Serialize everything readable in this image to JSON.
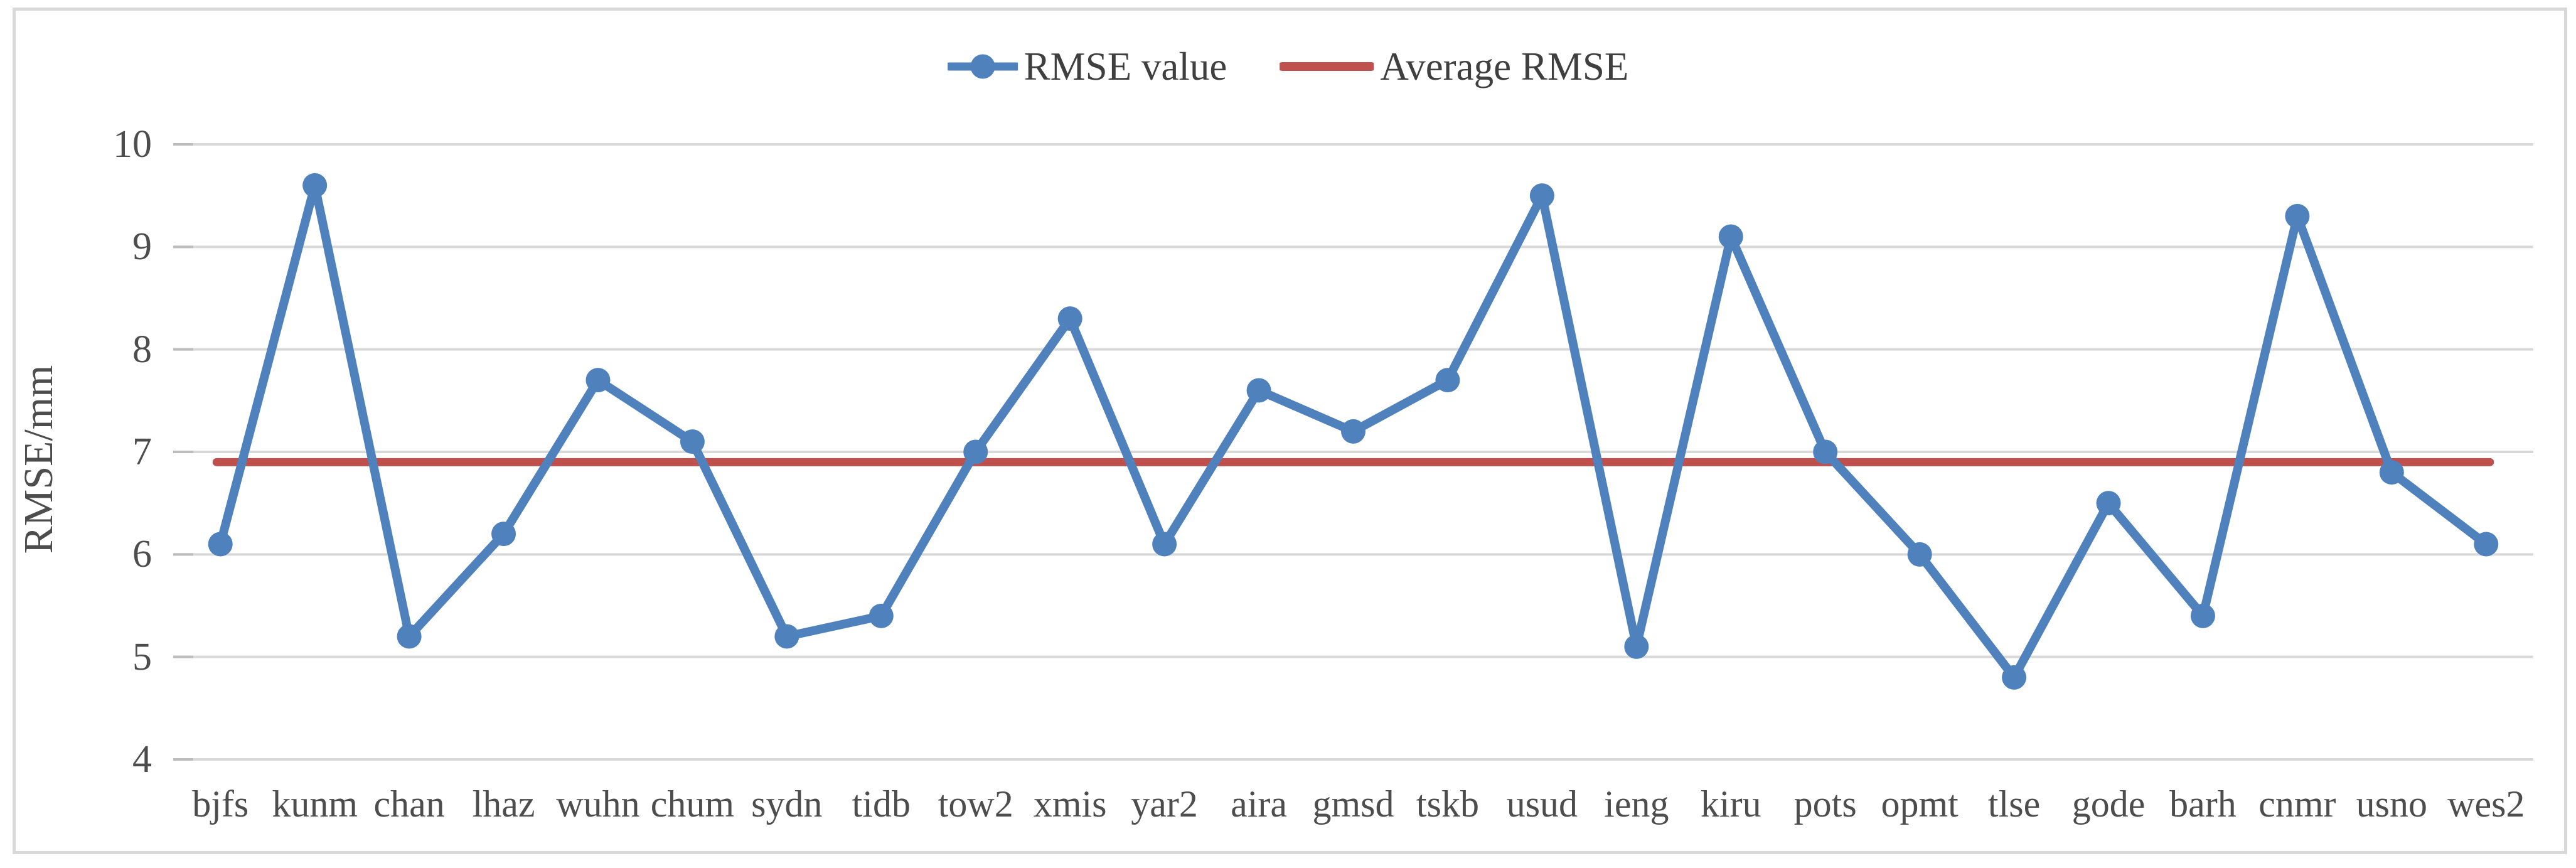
{
  "chart": {
    "legend": {
      "items": [
        {
          "label": "RMSE value",
          "swatch": "line-with-circle-marker"
        },
        {
          "label": "Average RMSE",
          "swatch": "plain-line"
        }
      ]
    },
    "y_axis": {
      "title": "RMSE/mm",
      "tick_labels": [
        "10",
        "9",
        "8",
        "7",
        "6",
        "5",
        "4"
      ],
      "min": 4,
      "max": 10
    }
  },
  "chart_data": {
    "type": "line",
    "title": "",
    "xlabel": "",
    "ylabel": "RMSE/mm",
    "ylim": [
      4,
      10
    ],
    "yticks": [
      4,
      5,
      6,
      7,
      8,
      9,
      10
    ],
    "grid": true,
    "legend_position": "top-center",
    "categories": [
      "bjfs",
      "kunm",
      "chan",
      "lhaz",
      "wuhn",
      "chum",
      "sydn",
      "tidb",
      "tow2",
      "xmis",
      "yar2",
      "aira",
      "gmsd",
      "tskb",
      "usud",
      "ieng",
      "kiru",
      "pots",
      "opmt",
      "tlse",
      "gode",
      "barh",
      "cnmr",
      "usno",
      "wes2"
    ],
    "series": [
      {
        "name": "RMSE value",
        "color": "#4F81BD",
        "marker": "circle",
        "values": [
          6.1,
          9.6,
          5.2,
          6.2,
          7.7,
          7.1,
          5.2,
          5.4,
          7.0,
          8.3,
          6.1,
          7.6,
          7.2,
          7.7,
          9.5,
          5.1,
          9.1,
          7.0,
          6.0,
          4.8,
          6.5,
          5.4,
          9.3,
          6.8,
          6.1
        ]
      },
      {
        "name": "Average RMSE",
        "color": "#C0504D",
        "marker": "none",
        "constant_value": 6.9
      }
    ]
  },
  "colors": {
    "rmse_line": "#4F81BD",
    "average_line": "#C0504D",
    "gridline": "#D9D9D9",
    "tick_mark": "#BDBDBD",
    "axis_text": "#4D4D4D",
    "legend_text": "#3F3F3F",
    "frame_border": "#D9D9D9",
    "background": "#FFFFFF"
  }
}
